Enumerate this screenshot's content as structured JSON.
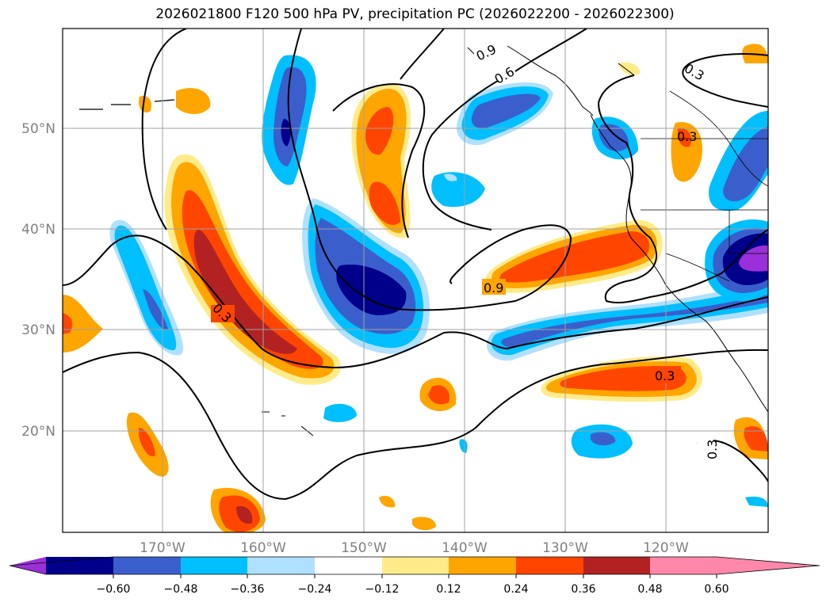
{
  "title": "2026021800 F120 500 hPa PV, precipitation PC (2026022200 - 2026022300)",
  "lat_labels": [
    "50°N",
    "40°N",
    "30°N",
    "20°N"
  ],
  "lon_labels": [
    "170°W",
    "160°W",
    "150°W",
    "140°W",
    "130°W",
    "120°W"
  ],
  "colorbar": {
    "ticks": [
      "−0.60",
      "−0.48",
      "−0.36",
      "−0.24",
      "−0.12",
      "0.12",
      "0.24",
      "0.36",
      "0.48",
      "0.60"
    ],
    "colors": [
      "#9b30d8",
      "#00008b",
      "#3a5fcd",
      "#00bfff",
      "#b0e0ff",
      "#ffffff",
      "#ffeb8a",
      "#ffa500",
      "#ff4500",
      "#b22222",
      "#ff88aa"
    ]
  },
  "contour_labels": {
    "c1": "0.9",
    "c2": "0.6",
    "c3": "0.3",
    "c4": "0.3",
    "c5": "0.3",
    "c6": "0.9",
    "c7": "0.3",
    "c8": "0.3"
  }
}
